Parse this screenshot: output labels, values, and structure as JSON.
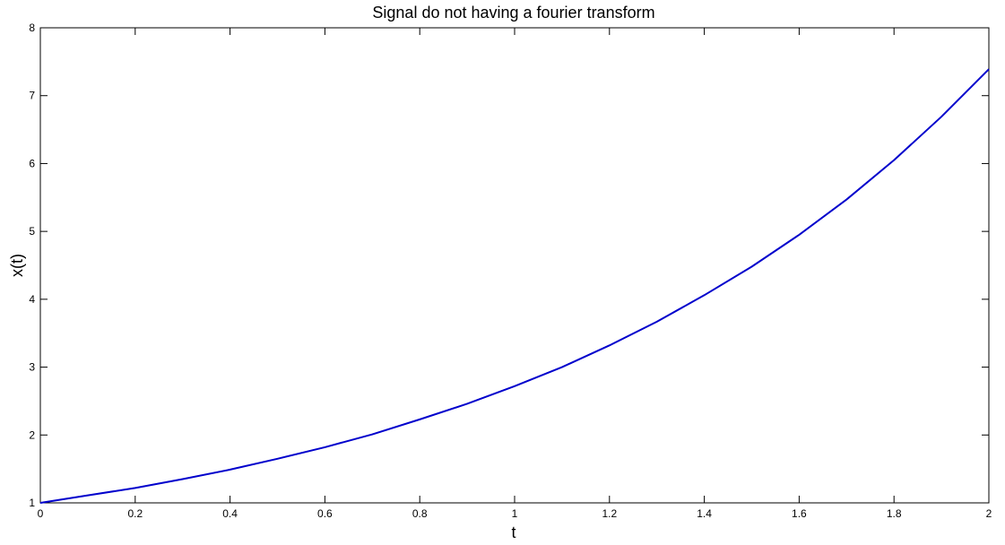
{
  "chart_data": {
    "type": "line",
    "title": "Signal do not having a fourier transform",
    "xlabel": "t",
    "ylabel": "x(t)",
    "xlim": [
      0,
      2
    ],
    "ylim": [
      1,
      8
    ],
    "xticks": [
      "0",
      "0.2",
      "0.4",
      "0.6",
      "0.8",
      "1",
      "1.2",
      "1.4",
      "1.6",
      "1.8",
      "2"
    ],
    "yticks": [
      "1",
      "2",
      "3",
      "4",
      "5",
      "6",
      "7",
      "8"
    ],
    "grid": false,
    "legend": "none",
    "series": [
      {
        "color": "#0000cc",
        "x": [
          0,
          0.1,
          0.2,
          0.3,
          0.4,
          0.5,
          0.6,
          0.7,
          0.8,
          0.9,
          1.0,
          1.1,
          1.2,
          1.3,
          1.4,
          1.5,
          1.6,
          1.7,
          1.8,
          1.9,
          2.0
        ],
        "y": [
          1.0,
          1.11,
          1.22,
          1.35,
          1.49,
          1.65,
          1.82,
          2.01,
          2.23,
          2.46,
          2.72,
          3.0,
          3.32,
          3.67,
          4.06,
          4.48,
          4.95,
          5.47,
          6.05,
          6.69,
          7.39
        ]
      }
    ]
  }
}
